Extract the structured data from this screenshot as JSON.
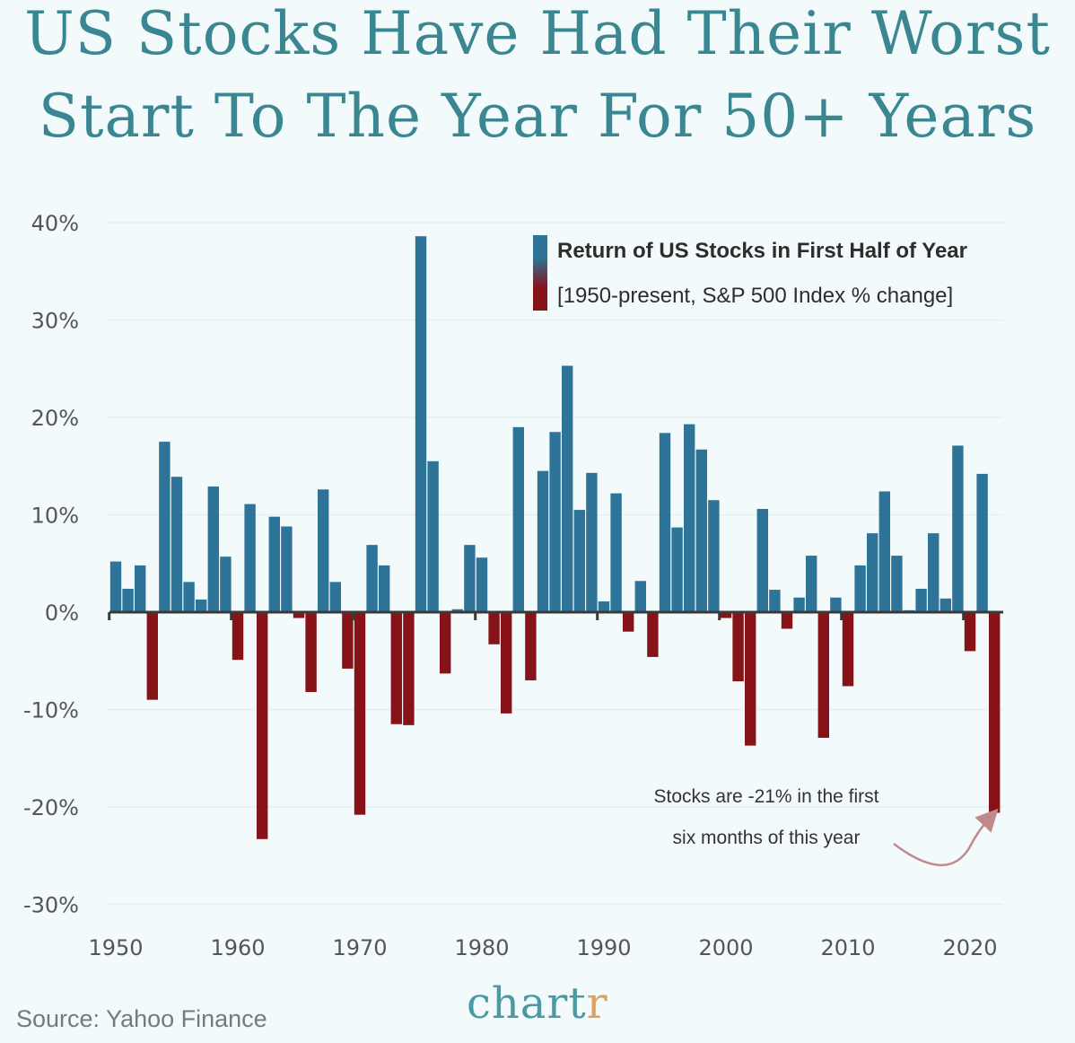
{
  "title_lines": [
    "US Stocks Have Had Their Worst",
    "Start To The Year For 50+ Years"
  ],
  "source": "Source: Yahoo Finance",
  "logo": {
    "main": "chart",
    "accent": "r"
  },
  "colors": {
    "positive": "#2e7499",
    "negative": "#861318",
    "title": "#3a8791",
    "arrow": "#c08a8c",
    "background": "#f2fafb"
  },
  "chart_data": {
    "type": "bar",
    "title": "",
    "legend": {
      "title": "Return of US Stocks in First Half of Year",
      "subtitle": "[1950-present, S&P 500 Index % change]",
      "position": "top-right"
    },
    "ylim": [
      -30,
      40
    ],
    "y_ticks": [
      "40%",
      "30%",
      "20%",
      "10%",
      "0%",
      "-10%",
      "-20%",
      "-30%"
    ],
    "y_tick_values": [
      40,
      30,
      20,
      10,
      0,
      -10,
      -20,
      -30
    ],
    "x_ticks": [
      "1950",
      "1960",
      "1970",
      "1980",
      "1990",
      "2000",
      "2010",
      "2020"
    ],
    "grid": true,
    "annotation": {
      "lines": [
        "Stocks are -21% in the first",
        "six months of this year"
      ],
      "target_year": 2022
    },
    "years": [
      1950,
      1951,
      1952,
      1953,
      1954,
      1955,
      1956,
      1957,
      1958,
      1959,
      1960,
      1961,
      1962,
      1963,
      1964,
      1965,
      1966,
      1967,
      1968,
      1969,
      1970,
      1971,
      1972,
      1973,
      1974,
      1975,
      1976,
      1977,
      1978,
      1979,
      1980,
      1981,
      1982,
      1983,
      1984,
      1985,
      1986,
      1987,
      1988,
      1989,
      1990,
      1991,
      1992,
      1993,
      1994,
      1995,
      1996,
      1997,
      1998,
      1999,
      2000,
      2001,
      2002,
      2003,
      2004,
      2005,
      2006,
      2007,
      2008,
      2009,
      2010,
      2011,
      2012,
      2013,
      2014,
      2015,
      2016,
      2017,
      2018,
      2019,
      2020,
      2021,
      2022
    ],
    "values": [
      5.2,
      2.4,
      4.8,
      -9.0,
      17.5,
      13.9,
      3.1,
      1.3,
      12.9,
      5.7,
      -4.9,
      11.1,
      -23.3,
      9.8,
      8.8,
      -0.6,
      -8.2,
      12.6,
      3.1,
      -5.8,
      -20.8,
      6.9,
      4.8,
      -11.5,
      -11.6,
      38.6,
      15.5,
      -6.3,
      0.3,
      6.9,
      5.6,
      -3.3,
      -10.4,
      19.0,
      -7.0,
      14.5,
      18.5,
      25.3,
      10.5,
      14.3,
      1.1,
      12.2,
      -2.0,
      3.2,
      -4.6,
      18.4,
      8.7,
      19.3,
      16.7,
      11.5,
      -0.6,
      -7.1,
      -13.7,
      10.6,
      2.3,
      -1.7,
      1.5,
      5.8,
      -12.9,
      1.5,
      -7.6,
      4.8,
      8.1,
      12.4,
      5.8,
      0.2,
      2.4,
      8.1,
      1.4,
      17.1,
      -4.0,
      14.2,
      -20.6
    ]
  }
}
